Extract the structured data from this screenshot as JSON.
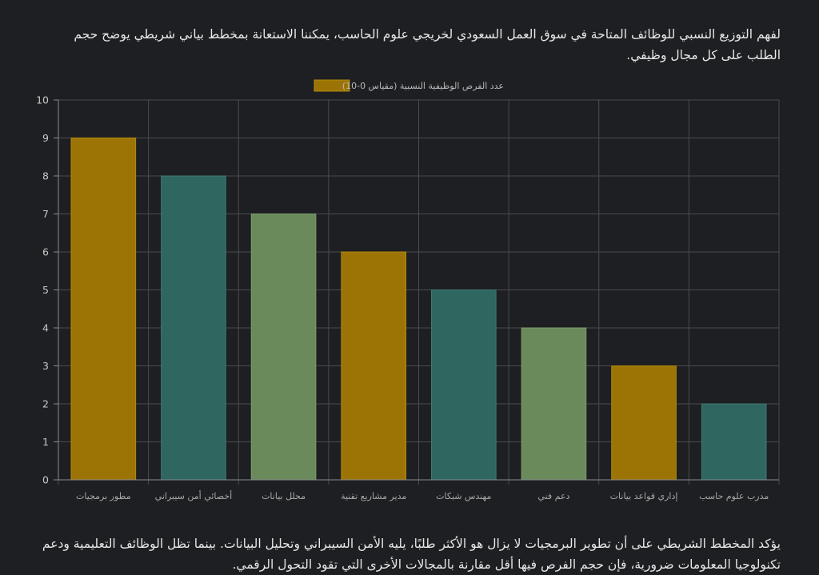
{
  "intro": "لفهم التوزيع النسبي للوظائف المتاحة في سوق العمل السعودي لخريجي علوم الحاسب، يمكننا الاستعانة بمخطط بياني شريطي يوضح حجم الطلب على كل مجال وظيفي.",
  "conclusion": "يؤكد المخطط الشريطي على أن تطوير البرمجيات لا يزال هو الأكثر طلبًا، يليه الأمن السيبراني وتحليل البيانات. بينما تظل الوظائف التعليمية ودعم تكنولوجيا المعلومات ضرورية، فإن حجم الفرص فيها أقل مقارنة بالمجالات الأخرى التي تقود التحول الرقمي.",
  "chart_data": {
    "type": "bar",
    "title": "",
    "legend": {
      "label": "عدد الفرص الوظيفية النسبية (مقياس 0-10)",
      "position": "top-center",
      "color": "#9c7406"
    },
    "categories": [
      "مطور برمجيات",
      "أخصائي أمن سيبراني",
      "محلل بيانات",
      "مدير مشاريع تقنية",
      "مهندس شبكات",
      "دعم فني",
      "إداري قواعد بيانات",
      "مدرب علوم حاسب"
    ],
    "values": [
      9,
      8,
      7,
      6,
      5,
      4,
      3,
      2
    ],
    "bar_colors": [
      "#9c7406",
      "#2f6660",
      "#6a8a5c",
      "#9c7406",
      "#2f6660",
      "#6a8a5c",
      "#9c7406",
      "#2f6660"
    ],
    "bar_border_colors": [
      "#b38a0e",
      "#3f7a72",
      "#7c9c6d",
      "#b38a0e",
      "#3f7a72",
      "#7c9c6d",
      "#b38a0e",
      "#3f7a72"
    ],
    "ylim": [
      0,
      10
    ],
    "yticks": [
      0,
      1,
      2,
      3,
      4,
      5,
      6,
      7,
      8,
      9,
      10
    ],
    "xlabel": "",
    "ylabel": "",
    "grid": true
  }
}
